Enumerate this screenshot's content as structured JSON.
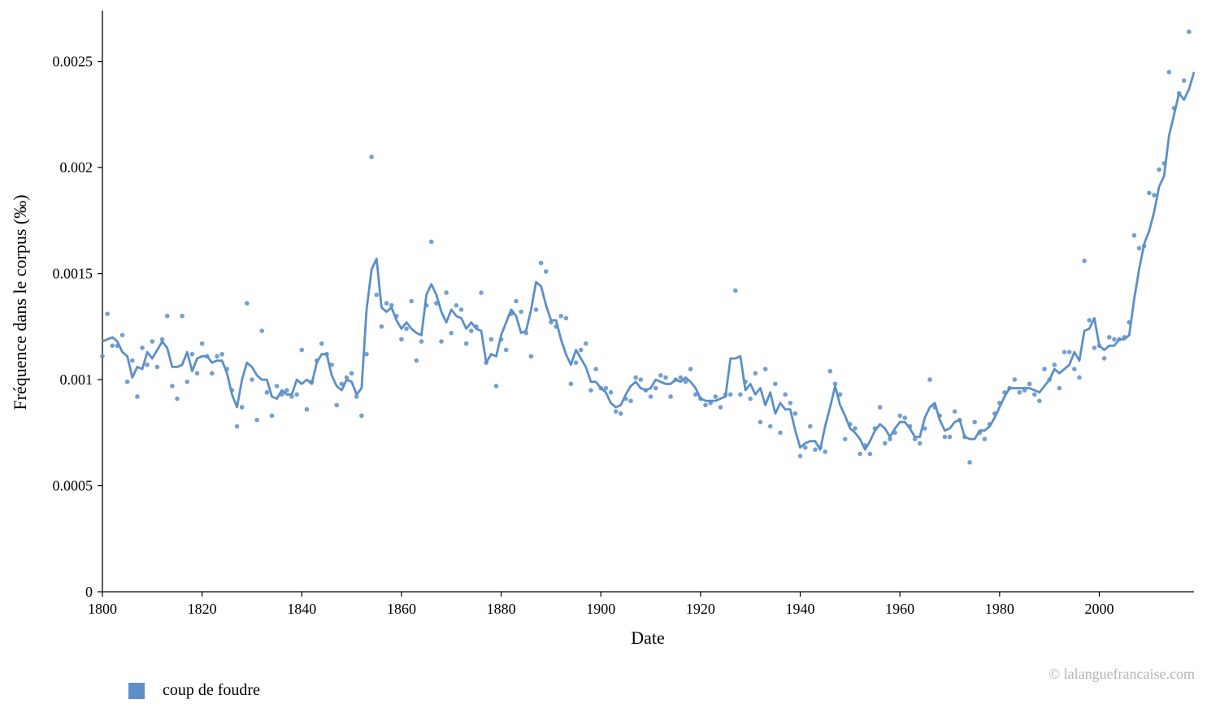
{
  "chart_data": {
    "type": "line",
    "title": "",
    "xlabel": "Date",
    "ylabel": "Fréquence dans le corpus (‰)",
    "xlim": [
      1800,
      2019
    ],
    "ylim": [
      0,
      0.00274
    ],
    "x_ticks": [
      1800,
      1820,
      1840,
      1860,
      1880,
      1900,
      1920,
      1940,
      1960,
      1980,
      2000
    ],
    "y_ticks": [
      0,
      0.0005,
      0.001,
      0.0015,
      0.002,
      0.0025
    ],
    "y_tick_labels": [
      "0",
      "0.0005",
      "0.001",
      "0.0015",
      "0.002",
      "0.0025"
    ],
    "grid": false,
    "legend_position": "bottom-left",
    "series": [
      {
        "name": "coup de foudre",
        "color": "#5b8fc9",
        "x": [
          1800,
          1801,
          1802,
          1803,
          1804,
          1805,
          1806,
          1807,
          1808,
          1809,
          1810,
          1811,
          1812,
          1813,
          1814,
          1815,
          1816,
          1817,
          1818,
          1819,
          1820,
          1821,
          1822,
          1823,
          1824,
          1825,
          1826,
          1827,
          1828,
          1829,
          1830,
          1831,
          1832,
          1833,
          1834,
          1835,
          1836,
          1837,
          1838,
          1839,
          1840,
          1841,
          1842,
          1843,
          1844,
          1845,
          1846,
          1847,
          1848,
          1849,
          1850,
          1851,
          1852,
          1853,
          1854,
          1855,
          1856,
          1857,
          1858,
          1859,
          1860,
          1861,
          1862,
          1863,
          1864,
          1865,
          1866,
          1867,
          1868,
          1869,
          1870,
          1871,
          1872,
          1873,
          1874,
          1875,
          1876,
          1877,
          1878,
          1879,
          1880,
          1881,
          1882,
          1883,
          1884,
          1885,
          1886,
          1887,
          1888,
          1889,
          1890,
          1891,
          1892,
          1893,
          1894,
          1895,
          1896,
          1897,
          1898,
          1899,
          1900,
          1901,
          1902,
          1903,
          1904,
          1905,
          1906,
          1907,
          1908,
          1909,
          1910,
          1911,
          1912,
          1913,
          1914,
          1915,
          1916,
          1917,
          1918,
          1919,
          1920,
          1921,
          1922,
          1923,
          1924,
          1925,
          1926,
          1927,
          1928,
          1929,
          1930,
          1931,
          1932,
          1933,
          1934,
          1935,
          1936,
          1937,
          1938,
          1939,
          1940,
          1941,
          1942,
          1943,
          1944,
          1945,
          1946,
          1947,
          1948,
          1949,
          1950,
          1951,
          1952,
          1953,
          1954,
          1955,
          1956,
          1957,
          1958,
          1959,
          1960,
          1961,
          1962,
          1963,
          1964,
          1965,
          1966,
          1967,
          1968,
          1969,
          1970,
          1971,
          1972,
          1973,
          1974,
          1975,
          1976,
          1977,
          1978,
          1979,
          1980,
          1981,
          1982,
          1983,
          1984,
          1985,
          1986,
          1987,
          1988,
          1989,
          1990,
          1991,
          1992,
          1993,
          1994,
          1995,
          1996,
          1997,
          1998,
          1999,
          2000,
          2001,
          2002,
          2003,
          2004,
          2005,
          2006,
          2007,
          2008,
          2009,
          2010,
          2011,
          2012,
          2013,
          2014,
          2015,
          2016,
          2017,
          2018,
          2019
        ],
        "smoothed": [
          0.00118,
          0.00119,
          0.0012,
          0.00118,
          0.00113,
          0.00111,
          0.00101,
          0.00106,
          0.00105,
          0.00113,
          0.0011,
          0.00114,
          0.00118,
          0.00115,
          0.00106,
          0.00106,
          0.00107,
          0.00113,
          0.00104,
          0.0011,
          0.00111,
          0.00111,
          0.00108,
          0.00109,
          0.00109,
          0.00103,
          0.00093,
          0.00087,
          0.001,
          0.00108,
          0.00106,
          0.00102,
          0.001,
          0.001,
          0.00092,
          0.00091,
          0.00095,
          0.00093,
          0.00093,
          0.001,
          0.00098,
          0.001,
          0.00098,
          0.00108,
          0.00112,
          0.00112,
          0.00102,
          0.00097,
          0.00095,
          0.001,
          0.00099,
          0.00093,
          0.00096,
          0.00133,
          0.00152,
          0.00157,
          0.00134,
          0.00132,
          0.00134,
          0.00128,
          0.00124,
          0.00127,
          0.00124,
          0.00122,
          0.00121,
          0.0014,
          0.00145,
          0.0014,
          0.00132,
          0.00127,
          0.00133,
          0.0013,
          0.00129,
          0.00124,
          0.00127,
          0.00124,
          0.00123,
          0.00108,
          0.00112,
          0.00111,
          0.00121,
          0.00127,
          0.00133,
          0.0013,
          0.00122,
          0.00123,
          0.00133,
          0.00146,
          0.00144,
          0.00135,
          0.00128,
          0.00128,
          0.00119,
          0.00112,
          0.00107,
          0.00114,
          0.0011,
          0.00106,
          0.00099,
          0.00099,
          0.00096,
          0.00094,
          0.00089,
          0.00087,
          0.00088,
          0.00093,
          0.00097,
          0.00099,
          0.00096,
          0.00095,
          0.00096,
          0.001,
          0.00099,
          0.00098,
          0.00098,
          0.001,
          0.00099,
          0.00101,
          0.00099,
          0.00096,
          0.00091,
          0.0009,
          0.0009,
          0.0009,
          0.00091,
          0.00092,
          0.0011,
          0.0011,
          0.00111,
          0.00095,
          0.00098,
          0.00093,
          0.00096,
          0.00088,
          0.00094,
          0.00084,
          0.00089,
          0.00086,
          0.00086,
          0.00076,
          0.00068,
          0.0007,
          0.00071,
          0.00071,
          0.00067,
          0.00078,
          0.00087,
          0.00097,
          0.00088,
          0.00083,
          0.00077,
          0.00075,
          0.00072,
          0.00067,
          0.00071,
          0.00076,
          0.00079,
          0.00077,
          0.00073,
          0.00077,
          0.0008,
          0.0008,
          0.00077,
          0.00073,
          0.00073,
          0.00082,
          0.00087,
          0.00089,
          0.00081,
          0.00076,
          0.00077,
          0.0008,
          0.00081,
          0.00073,
          0.00072,
          0.00072,
          0.00076,
          0.00076,
          0.00078,
          0.00082,
          0.00087,
          0.00092,
          0.00096,
          0.00096,
          0.00096,
          0.00096,
          0.00096,
          0.00095,
          0.00094,
          0.00097,
          0.001,
          0.00105,
          0.00103,
          0.00105,
          0.00107,
          0.00113,
          0.00109,
          0.00123,
          0.00124,
          0.00129,
          0.00116,
          0.00114,
          0.00116,
          0.00116,
          0.00119,
          0.00119,
          0.00121,
          0.00138,
          0.00152,
          0.00164,
          0.0017,
          0.00179,
          0.00191,
          0.00196,
          0.00215,
          0.00225,
          0.00235,
          0.00232,
          0.00237,
          0.00245,
          0.00256
        ],
        "raw": [
          0.00111,
          0.00131,
          0.00116,
          0.00116,
          0.00121,
          0.00099,
          0.00109,
          0.00092,
          0.00115,
          0.00107,
          0.00118,
          0.00106,
          0.00119,
          0.0013,
          0.00097,
          0.00091,
          0.0013,
          0.00099,
          0.00112,
          0.00103,
          0.00117,
          0.00111,
          0.00103,
          0.00111,
          0.00112,
          0.00105,
          0.00095,
          0.00078,
          0.00087,
          0.00136,
          0.001,
          0.00081,
          0.00123,
          0.00094,
          0.00083,
          0.00097,
          0.00093,
          0.00095,
          0.00092,
          0.00093,
          0.00114,
          0.00086,
          0.00099,
          0.00109,
          0.00117,
          0.00112,
          0.00107,
          0.00088,
          0.00098,
          0.00101,
          0.00103,
          0.00092,
          0.00083,
          0.00112,
          0.00205,
          0.0014,
          0.00125,
          0.00136,
          0.00135,
          0.0013,
          0.00119,
          0.00124,
          0.00137,
          0.00109,
          0.00118,
          0.00135,
          0.00165,
          0.00136,
          0.00118,
          0.00141,
          0.00122,
          0.00135,
          0.00133,
          0.00117,
          0.00123,
          0.00125,
          0.00141,
          0.00108,
          0.00119,
          0.00097,
          0.00119,
          0.00114,
          0.00131,
          0.00137,
          0.00132,
          0.00122,
          0.00111,
          0.00133,
          0.00155,
          0.00151,
          0.00127,
          0.00125,
          0.0013,
          0.00129,
          0.00098,
          0.00108,
          0.00114,
          0.00117,
          0.00095,
          0.00105,
          0.00096,
          0.00096,
          0.00094,
          0.00085,
          0.00084,
          0.00091,
          0.0009,
          0.00101,
          0.001,
          0.00095,
          0.00092,
          0.00096,
          0.00102,
          0.00101,
          0.00092,
          0.001,
          0.00101,
          0.00099,
          0.00105,
          0.00093,
          0.00091,
          0.00088,
          0.00089,
          0.00092,
          0.00087,
          0.00093,
          0.00093,
          0.00142,
          0.00093,
          0.00099,
          0.00091,
          0.00103,
          0.0008,
          0.00105,
          0.00078,
          0.00098,
          0.00075,
          0.00093,
          0.00089,
          0.00084,
          0.00064,
          0.00068,
          0.00078,
          0.00067,
          0.00068,
          0.00066,
          0.00104,
          0.00098,
          0.00093,
          0.00072,
          0.00079,
          0.00077,
          0.00065,
          0.00069,
          0.00065,
          0.00077,
          0.00087,
          0.0007,
          0.00072,
          0.00075,
          0.00083,
          0.00082,
          0.00078,
          0.00072,
          0.0007,
          0.00077,
          0.001,
          0.00087,
          0.00083,
          0.00073,
          0.00073,
          0.00085,
          0.00081,
          0.00073,
          0.00061,
          0.0008,
          0.00075,
          0.00072,
          0.00079,
          0.00084,
          0.00089,
          0.00094,
          0.00096,
          0.001,
          0.00094,
          0.00095,
          0.00098,
          0.00093,
          0.0009,
          0.00105,
          0.001,
          0.00107,
          0.00096,
          0.00113,
          0.00113,
          0.00105,
          0.00101,
          0.00156,
          0.00128,
          0.00115,
          0.00116,
          0.0011,
          0.0012,
          0.00119,
          0.00119,
          0.0012,
          0.00127,
          0.00168,
          0.00162,
          0.00163,
          0.00188,
          0.00187,
          0.00199,
          0.00202,
          0.00245,
          0.00228,
          0.00235,
          0.00241,
          0.00264
        ]
      }
    ]
  },
  "copyright": "© lalanguefrancaise.com"
}
